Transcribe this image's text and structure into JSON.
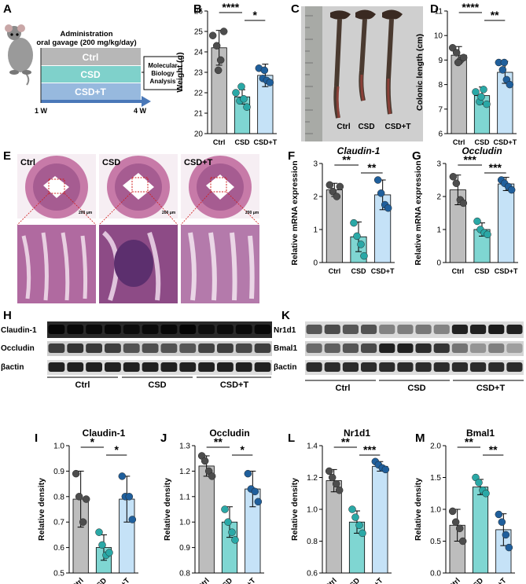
{
  "colors": {
    "ctrl": "#bdbdbd",
    "csd": "#7fd6d2",
    "csdt": "#c5e2f7",
    "dot_ctrl": "#4d4d4d",
    "dot_csd": "#2aa8a6",
    "dot_csdt": "#1f5f9c",
    "arrow": "#4a78b8",
    "ctrl_band": "#b7b7b7",
    "csd_band": "#7fd1cb",
    "csdt_band": "#97b9de",
    "he": "#c77aa8"
  },
  "panelA": {
    "letter": "A",
    "title1": "Administration",
    "title2": "oral gavage (200 mg/kg/day)",
    "rows": [
      "Ctrl",
      "CSD",
      "CSD+T"
    ],
    "box_lines": [
      "Molecular",
      "Biology",
      "Analysis"
    ],
    "start": "1 W",
    "end": "4 W"
  },
  "panelC": {
    "letter": "C",
    "labels": [
      "Ctrl",
      "CSD",
      "CSD+T"
    ]
  },
  "panelE": {
    "letter": "E",
    "labels": [
      "Ctrl",
      "CSD",
      "CSD+T"
    ],
    "scale": "200 μm"
  },
  "panelH": {
    "letter": "H",
    "bands": [
      "Claudin-1",
      "Occludin",
      "βactin"
    ],
    "groups": [
      "Ctrl",
      "CSD",
      "CSD+T"
    ]
  },
  "panelK": {
    "letter": "K",
    "bands": [
      "Nr1d1",
      "Bmal1",
      "βactin"
    ],
    "groups": [
      "Ctrl",
      "CSD",
      "CSD+T"
    ]
  },
  "chart_data": [
    {
      "id": "B",
      "letter": "B",
      "type": "bar",
      "title": "",
      "ylabel": "Weight (g)",
      "categories": [
        "Ctrl",
        "CSD",
        "CSD+T"
      ],
      "ylim": [
        20,
        26
      ],
      "yticks": [
        20,
        21,
        22,
        23,
        24,
        25,
        26
      ],
      "means": [
        24.2,
        21.8,
        22.85
      ],
      "sd": [
        0.85,
        0.35,
        0.55
      ],
      "points": [
        [
          24.8,
          24.3,
          23.6,
          25.0,
          23.1
        ],
        [
          22.0,
          21.6,
          21.7,
          21.3,
          22.3
        ],
        [
          23.2,
          22.7,
          22.6,
          22.5,
          23.1
        ]
      ],
      "sig": [
        {
          "a": 0,
          "b": 1,
          "text": "****"
        },
        {
          "a": 1,
          "b": 2,
          "text": "*"
        }
      ]
    },
    {
      "id": "D",
      "letter": "D",
      "type": "bar",
      "title": "",
      "ylabel": "Colonic length (cm)",
      "categories": [
        "Ctrl",
        "CSD",
        "CSD+T"
      ],
      "ylim": [
        6,
        11
      ],
      "yticks": [
        6,
        7,
        8,
        9,
        10,
        11
      ],
      "means": [
        9.2,
        7.55,
        8.5
      ],
      "sd": [
        0.35,
        0.35,
        0.45
      ],
      "points": [
        [
          9.5,
          9.3,
          9.0,
          9.1,
          8.9
        ],
        [
          7.7,
          7.3,
          7.8,
          7.2,
          7.5
        ],
        [
          8.9,
          8.6,
          8.2,
          8.0,
          8.9
        ]
      ],
      "sig": [
        {
          "a": 0,
          "b": 1,
          "text": "****"
        },
        {
          "a": 1,
          "b": 2,
          "text": "**"
        }
      ]
    },
    {
      "id": "F",
      "letter": "F",
      "type": "bar",
      "title": "Claudin-1",
      "ylabel": "Relative mRNA expression",
      "categories": [
        "Ctrl",
        "CSD",
        "CSD+T"
      ],
      "ylim": [
        0,
        3
      ],
      "yticks": [
        0,
        1,
        2,
        3
      ],
      "means": [
        2.2,
        0.78,
        2.05
      ],
      "sd": [
        0.2,
        0.45,
        0.45
      ],
      "points": [
        [
          2.35,
          2.15,
          2.0,
          2.3
        ],
        [
          1.2,
          0.8,
          0.55,
          0.2
        ],
        [
          2.5,
          2.1,
          1.75,
          1.65
        ]
      ],
      "sig": [
        {
          "a": 0,
          "b": 1,
          "text": "**"
        },
        {
          "a": 1,
          "b": 2,
          "text": "**"
        }
      ]
    },
    {
      "id": "G",
      "letter": "G",
      "type": "bar",
      "title": "Occludin",
      "ylabel": "Relative mRNA expression",
      "categories": [
        "Ctrl",
        "CSD",
        "CSD+T"
      ],
      "ylim": [
        0,
        3
      ],
      "yticks": [
        0,
        1,
        2,
        3
      ],
      "means": [
        2.2,
        1.0,
        2.38
      ],
      "sd": [
        0.45,
        0.2,
        0.2
      ],
      "points": [
        [
          2.6,
          2.4,
          1.9,
          1.8
        ],
        [
          1.25,
          1.0,
          0.9,
          0.85
        ],
        [
          2.5,
          2.4,
          2.3,
          2.2
        ]
      ],
      "sig": [
        {
          "a": 0,
          "b": 1,
          "text": "***"
        },
        {
          "a": 1,
          "b": 2,
          "text": "***"
        }
      ]
    },
    {
      "id": "I",
      "letter": "I",
      "type": "bar",
      "title": "Claudin-1",
      "ylabel": "Relative density",
      "categories": [
        "Ctrl",
        "CSD",
        "CSD+T"
      ],
      "ylim": [
        0.5,
        1.0
      ],
      "yticks": [
        0.5,
        0.6,
        0.7,
        0.8,
        0.9,
        1.0
      ],
      "means": [
        0.79,
        0.6,
        0.79
      ],
      "sd": [
        0.11,
        0.05,
        0.09
      ],
      "points": [
        [
          0.89,
          0.8,
          0.7,
          0.79
        ],
        [
          0.66,
          0.61,
          0.57,
          0.58
        ],
        [
          0.88,
          0.8,
          0.8,
          0.71
        ]
      ],
      "sig": [
        {
          "a": 0,
          "b": 1,
          "text": "*"
        },
        {
          "a": 1,
          "b": 2,
          "text": "*"
        }
      ]
    },
    {
      "id": "J",
      "letter": "J",
      "type": "bar",
      "title": "Occludin",
      "ylabel": "Relative density",
      "categories": [
        "Ctrl",
        "CSD",
        "CSD+T"
      ],
      "ylim": [
        0.8,
        1.3
      ],
      "yticks": [
        0.8,
        0.9,
        1.0,
        1.1,
        1.2,
        1.3
      ],
      "means": [
        1.22,
        1.0,
        1.13
      ],
      "sd": [
        0.04,
        0.06,
        0.07
      ],
      "points": [
        [
          1.26,
          1.24,
          1.2,
          1.18
        ],
        [
          1.05,
          1.0,
          0.96,
          0.93
        ],
        [
          1.19,
          1.13,
          1.12,
          1.08
        ]
      ],
      "sig": [
        {
          "a": 0,
          "b": 1,
          "text": "**"
        },
        {
          "a": 1,
          "b": 2,
          "text": "*"
        }
      ]
    },
    {
      "id": "L",
      "letter": "L",
      "type": "bar",
      "title": "Nr1d1",
      "ylabel": "Relative density",
      "categories": [
        "Ctrl",
        "CSD",
        "CSD+T"
      ],
      "ylim": [
        0.6,
        1.4
      ],
      "yticks": [
        0.6,
        0.8,
        1.0,
        1.2,
        1.4
      ],
      "means": [
        1.18,
        0.92,
        1.27
      ],
      "sd": [
        0.07,
        0.07,
        0.03
      ],
      "points": [
        [
          1.24,
          1.2,
          1.16,
          1.12
        ],
        [
          1.0,
          0.95,
          0.9,
          0.85
        ],
        [
          1.3,
          1.28,
          1.26,
          1.25
        ]
      ],
      "sig": [
        {
          "a": 0,
          "b": 1,
          "text": "**"
        },
        {
          "a": 1,
          "b": 2,
          "text": "***"
        }
      ]
    },
    {
      "id": "M",
      "letter": "M",
      "type": "bar",
      "title": "Bmal1",
      "ylabel": "Relative density",
      "categories": [
        "Ctrl",
        "CSD",
        "CSD+T"
      ],
      "ylim": [
        0,
        2.0
      ],
      "yticks": [
        0.0,
        0.5,
        1.0,
        1.5,
        2.0
      ],
      "means": [
        0.75,
        1.35,
        0.68
      ],
      "sd": [
        0.25,
        0.12,
        0.25
      ],
      "points": [
        [
          0.97,
          0.8,
          0.7,
          0.5
        ],
        [
          1.5,
          1.42,
          1.3,
          1.25
        ],
        [
          0.92,
          0.8,
          0.6,
          0.4
        ]
      ],
      "sig": [
        {
          "a": 0,
          "b": 1,
          "text": "**"
        },
        {
          "a": 1,
          "b": 2,
          "text": "**"
        }
      ]
    }
  ]
}
